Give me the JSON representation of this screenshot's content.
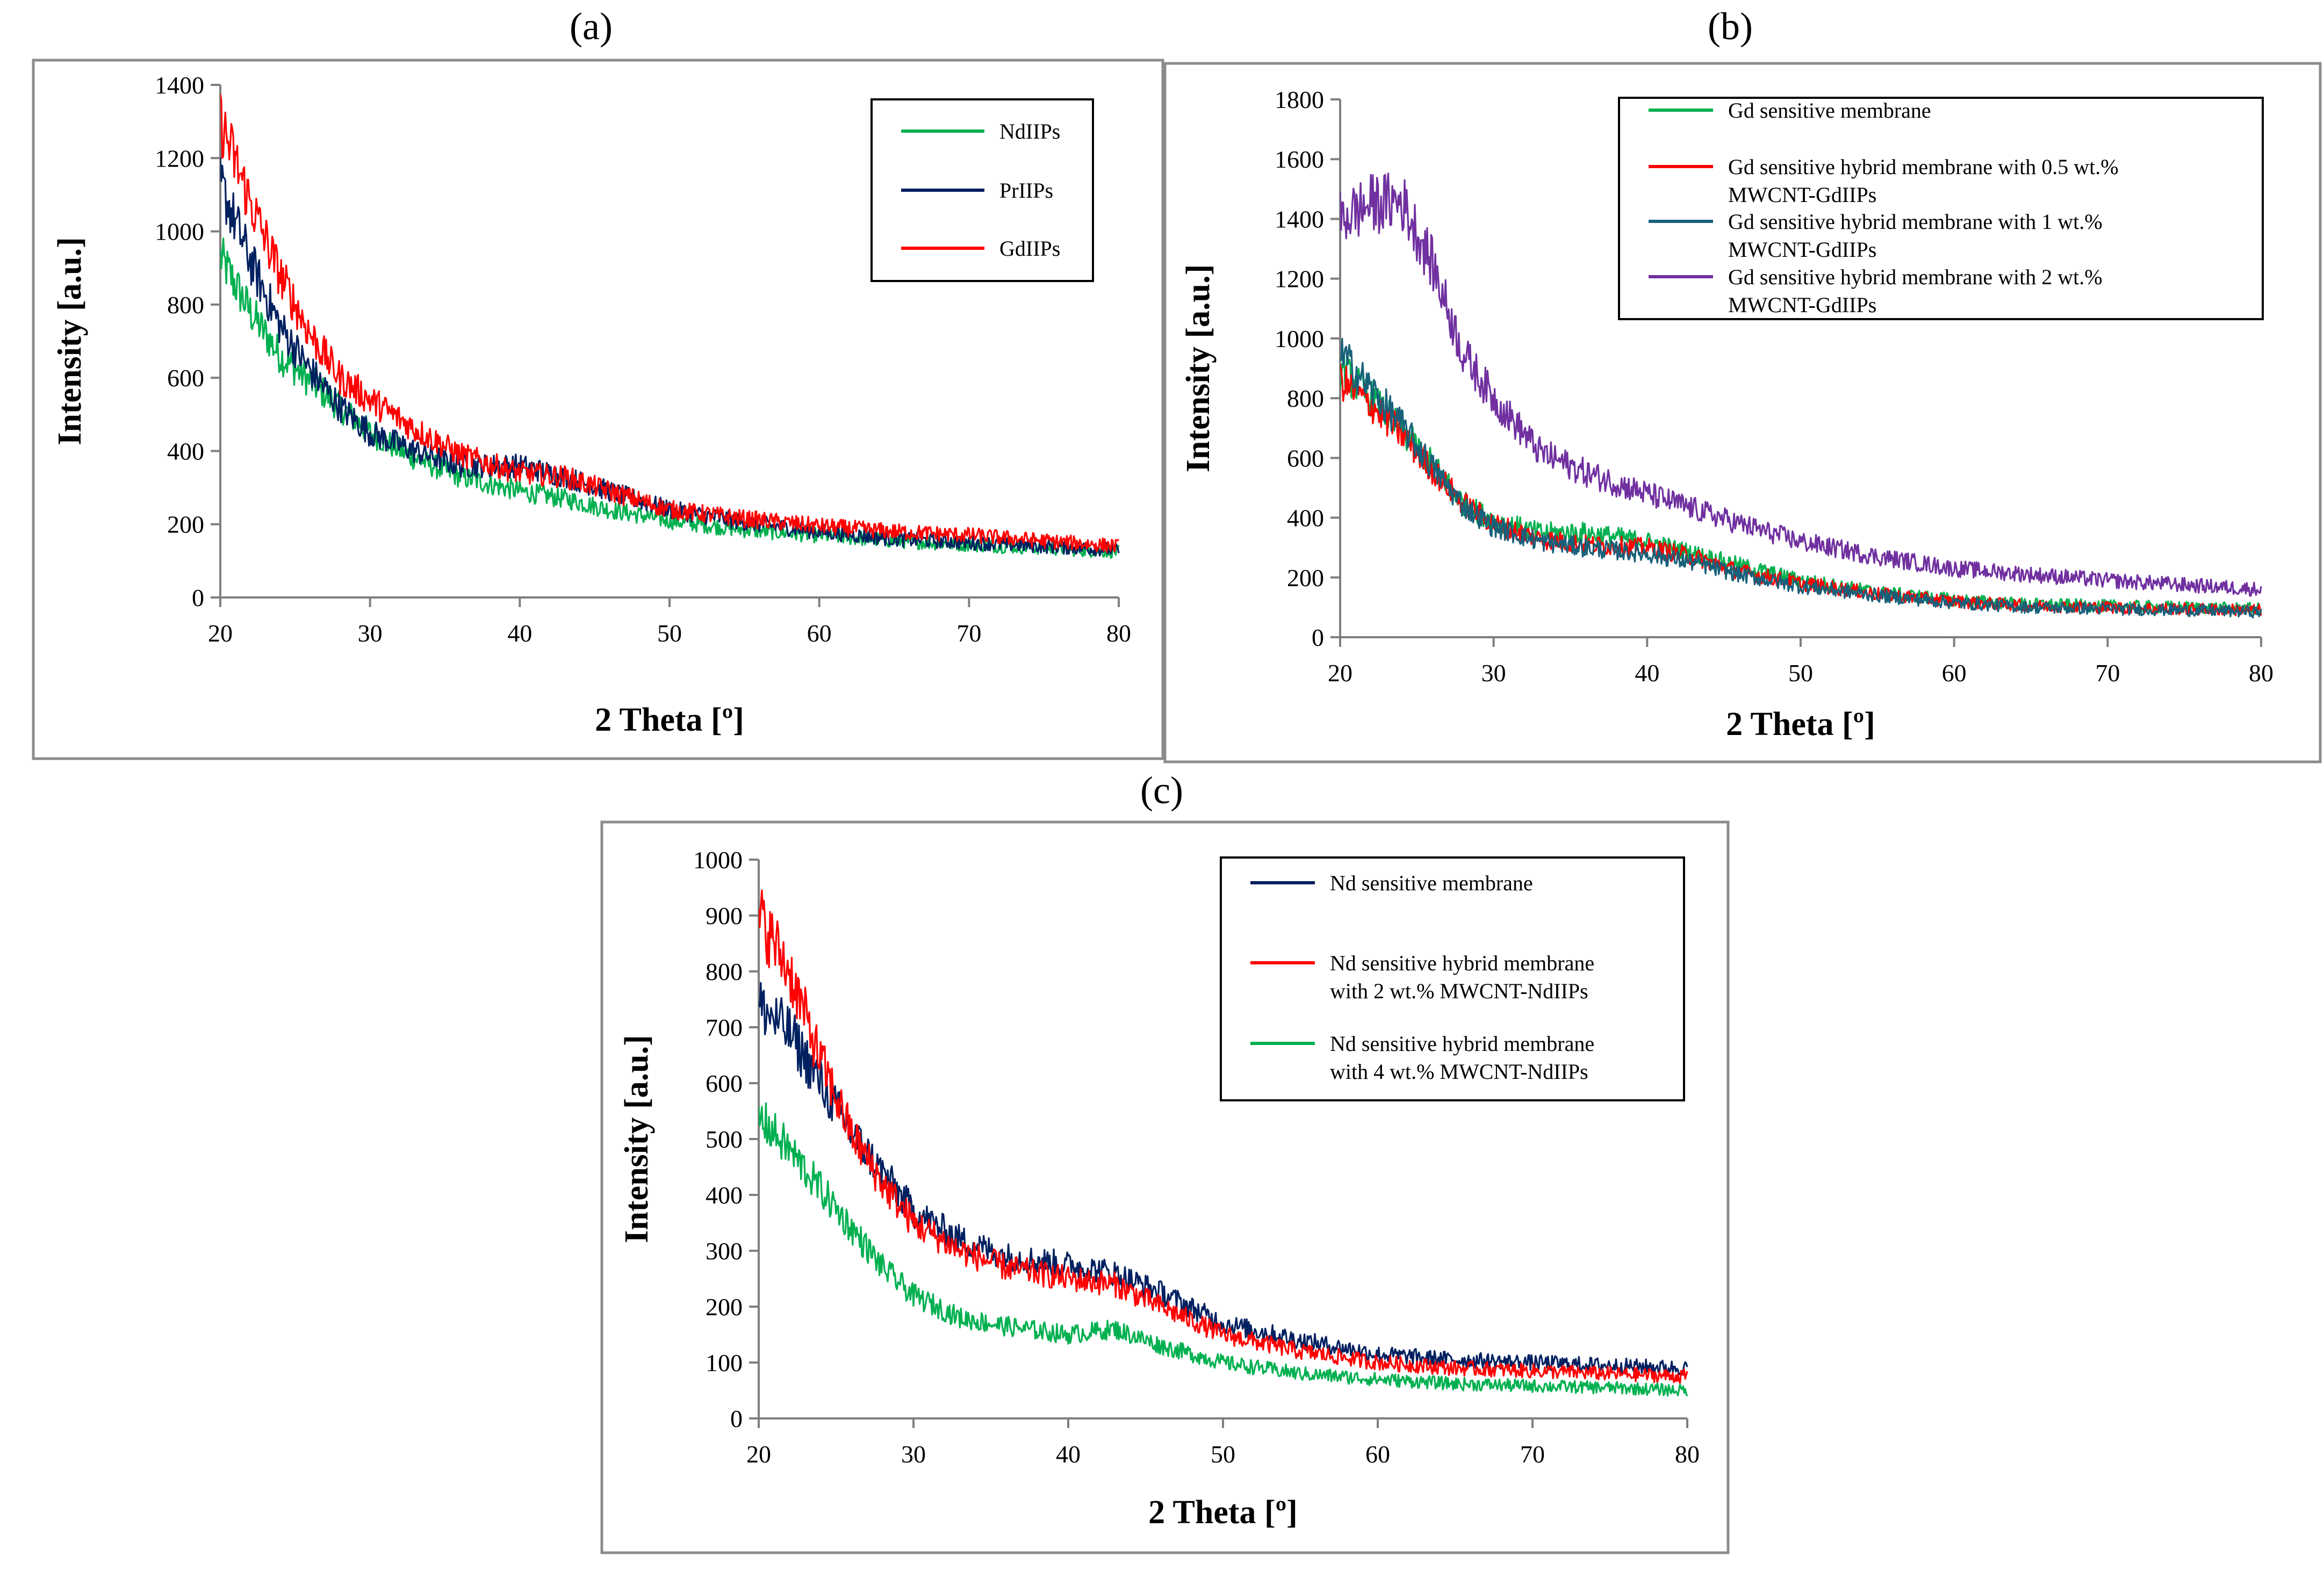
{
  "figure": {
    "labels": [
      "(a)",
      "(b)",
      "(c)"
    ]
  },
  "chart_data": [
    {
      "id": "a",
      "type": "line",
      "title": "",
      "xlabel": "2 Theta [º]",
      "ylabel": "Intensity [a.u.]",
      "xlim": [
        20,
        80
      ],
      "ylim": [
        0,
        1400
      ],
      "xticks": [
        20,
        30,
        40,
        50,
        60,
        70,
        80
      ],
      "yticks": [
        0,
        200,
        400,
        600,
        800,
        1000,
        1200,
        1400
      ],
      "legend_position": "top-right",
      "x": [
        20,
        22,
        24,
        26,
        28,
        30,
        33,
        36,
        40,
        43,
        46,
        50,
        55,
        60,
        65,
        70,
        75,
        80
      ],
      "series": [
        {
          "name": "NdIIPs",
          "color": "#00b050",
          "values": [
            930,
            780,
            660,
            590,
            520,
            450,
            380,
            330,
            290,
            270,
            240,
            210,
            185,
            170,
            155,
            145,
            135,
            125
          ]
        },
        {
          "name": "PrIIPs",
          "color": "#002060",
          "values": [
            1130,
            920,
            740,
            620,
            520,
            450,
            400,
            360,
            360,
            330,
            290,
            240,
            205,
            180,
            160,
            150,
            140,
            130
          ]
        },
        {
          "name": "GdIIPs",
          "color": "#ff0000",
          "values": [
            1300,
            1080,
            880,
            720,
            600,
            540,
            460,
            390,
            340,
            330,
            290,
            240,
            215,
            195,
            180,
            170,
            155,
            140
          ]
        }
      ]
    },
    {
      "id": "b",
      "type": "line",
      "title": "",
      "xlabel": "2 Theta [º]",
      "ylabel": "Intensity [a.u.]",
      "xlim": [
        20,
        80
      ],
      "ylim": [
        0,
        1800
      ],
      "xticks": [
        20,
        30,
        40,
        50,
        60,
        70,
        80
      ],
      "yticks": [
        0,
        200,
        400,
        600,
        800,
        1000,
        1200,
        1400,
        1600,
        1800
      ],
      "legend_position": "top-right",
      "x": [
        20,
        22,
        24,
        26,
        28,
        30,
        33,
        36,
        40,
        43,
        46,
        50,
        55,
        60,
        65,
        70,
        75,
        80
      ],
      "series": [
        {
          "name": "Gd sensitive membrane",
          "color": "#00b050",
          "values": [
            900,
            800,
            690,
            580,
            450,
            390,
            350,
            350,
            320,
            280,
            240,
            190,
            150,
            125,
            110,
            105,
            100,
            95
          ]
        },
        {
          "name": "Gd sensitive hybrid membrane with 0.5 wt.% MWCNT-GdIIPs",
          "color": "#ff0000",
          "values": [
            860,
            780,
            680,
            560,
            450,
            380,
            330,
            310,
            300,
            270,
            220,
            180,
            145,
            120,
            105,
            100,
            95,
            90
          ]
        },
        {
          "name": "Gd sensitive hybrid membrane with 1 wt.% MWCNT-GdIIPs",
          "color": "#17607a",
          "values": [
            950,
            830,
            710,
            570,
            440,
            370,
            320,
            300,
            280,
            250,
            210,
            170,
            140,
            115,
            100,
            95,
            90,
            85
          ]
        },
        {
          "name": "Gd sensitive hybrid membrane with 2 wt.% MWCNT-GdIIPs",
          "color": "#7030a0",
          "values": [
            1400,
            1450,
            1460,
            1250,
            950,
            800,
            620,
            550,
            480,
            430,
            380,
            320,
            270,
            230,
            210,
            190,
            175,
            160
          ]
        }
      ]
    },
    {
      "id": "c",
      "type": "line",
      "title": "",
      "xlabel": "2 Theta [º]",
      "ylabel": "Intensity [a.u.]",
      "xlim": [
        20,
        80
      ],
      "ylim": [
        0,
        1000
      ],
      "xticks": [
        20,
        30,
        40,
        50,
        60,
        70,
        80
      ],
      "yticks": [
        0,
        100,
        200,
        300,
        400,
        500,
        600,
        700,
        800,
        900,
        1000
      ],
      "legend_position": "top-right",
      "x": [
        20,
        22,
        24,
        26,
        28,
        30,
        33,
        36,
        40,
        43,
        46,
        50,
        55,
        60,
        65,
        70,
        75,
        80
      ],
      "series": [
        {
          "name": "Nd sensitive membrane",
          "color": "#002060",
          "values": [
            740,
            690,
            600,
            510,
            440,
            370,
            320,
            290,
            275,
            260,
            225,
            170,
            140,
            115,
            105,
            100,
            95,
            90
          ]
        },
        {
          "name": "Nd sensitive hybrid membrane with 2 wt.% MWCNT-NdIIPs",
          "color": "#ff0000",
          "values": [
            900,
            800,
            640,
            510,
            420,
            350,
            300,
            270,
            250,
            240,
            200,
            150,
            120,
            100,
            90,
            85,
            80,
            75
          ]
        },
        {
          "name": "Nd sensitive hybrid membrane with 4 wt.% MWCNT-NdIIPs",
          "color": "#00b050",
          "values": [
            540,
            480,
            410,
            340,
            270,
            220,
            180,
            165,
            150,
            160,
            130,
            100,
            80,
            70,
            62,
            58,
            55,
            50
          ]
        }
      ]
    }
  ]
}
